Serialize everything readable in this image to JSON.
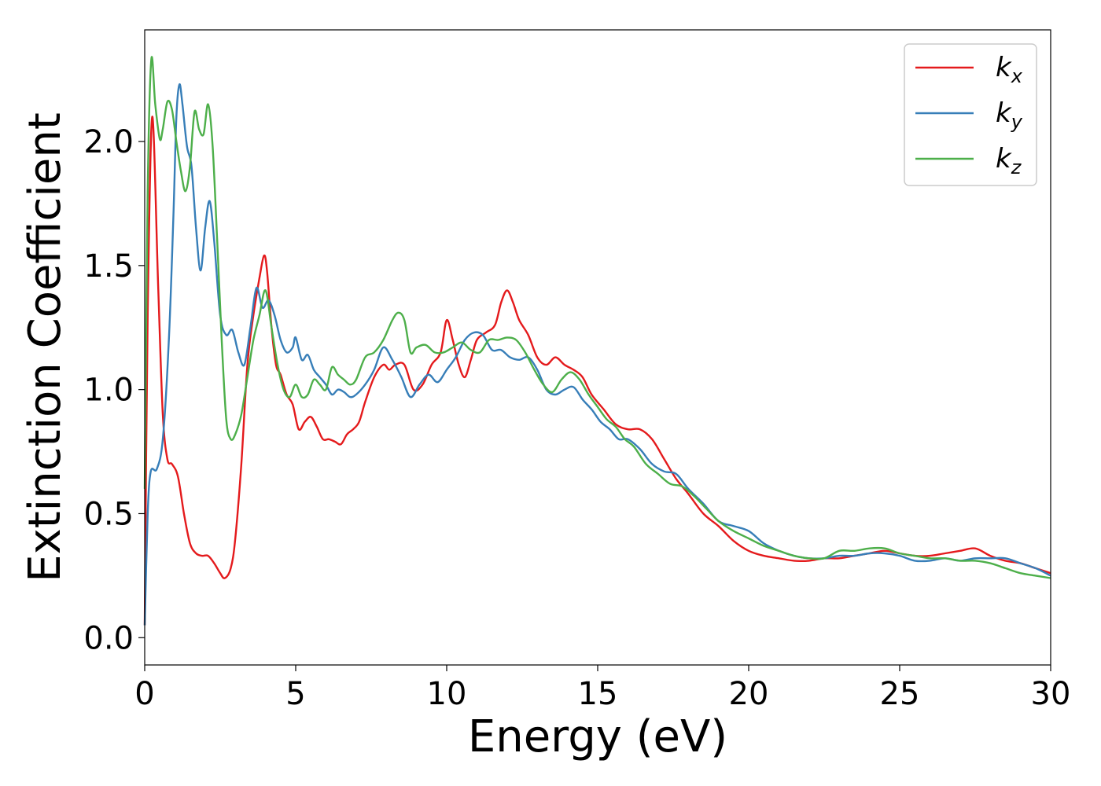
{
  "chart_data": {
    "type": "line",
    "title": "",
    "xlabel": "Energy (eV)",
    "ylabel": "Extinction Coefficient",
    "xlim": [
      0,
      30
    ],
    "ylim": [
      -0.11,
      2.45
    ],
    "xticks": [
      0,
      5,
      10,
      15,
      20,
      25,
      30
    ],
    "xtick_labels": [
      "0",
      "5",
      "10",
      "15",
      "20",
      "25",
      "30"
    ],
    "yticks": [
      0.0,
      0.5,
      1.0,
      1.5,
      2.0
    ],
    "ytick_labels": [
      "0.0",
      "0.5",
      "1.0",
      "1.5",
      "2.0"
    ],
    "grid": false,
    "legend": "top-right",
    "series": [
      {
        "name": "k",
        "subscript": "x",
        "color": "#e41a1c",
        "x": [
          0,
          0.1,
          0.25,
          0.45,
          0.6,
          0.75,
          0.9,
          1.1,
          1.3,
          1.5,
          1.7,
          1.9,
          2.1,
          2.3,
          2.5,
          2.65,
          2.85,
          3.0,
          3.2,
          3.4,
          3.6,
          3.8,
          3.95,
          4.05,
          4.2,
          4.35,
          4.5,
          4.7,
          4.9,
          5.1,
          5.3,
          5.5,
          5.7,
          5.9,
          6.1,
          6.3,
          6.5,
          6.7,
          6.9,
          7.1,
          7.3,
          7.6,
          7.9,
          8.1,
          8.3,
          8.6,
          8.9,
          9.2,
          9.5,
          9.8,
          10.0,
          10.2,
          10.4,
          10.6,
          10.8,
          11.0,
          11.3,
          11.6,
          11.8,
          12.0,
          12.2,
          12.4,
          12.7,
          13.0,
          13.3,
          13.6,
          13.9,
          14.2,
          14.5,
          14.8,
          15.2,
          15.6,
          16.0,
          16.4,
          16.8,
          17.2,
          17.6,
          18.0,
          18.5,
          19.0,
          19.5,
          20.0,
          20.5,
          21.0,
          21.5,
          22.0,
          22.5,
          23.0,
          23.5,
          24.0,
          24.5,
          25.0,
          25.5,
          26.0,
          26.5,
          27.0,
          27.5,
          28.0,
          28.5,
          29.0,
          29.5,
          30.0
        ],
        "y": [
          0.05,
          1.3,
          2.1,
          1.4,
          0.9,
          0.72,
          0.7,
          0.65,
          0.5,
          0.38,
          0.34,
          0.33,
          0.33,
          0.3,
          0.26,
          0.24,
          0.28,
          0.4,
          0.7,
          1.1,
          1.3,
          1.45,
          1.54,
          1.48,
          1.25,
          1.1,
          1.06,
          0.98,
          0.94,
          0.84,
          0.87,
          0.89,
          0.85,
          0.8,
          0.8,
          0.79,
          0.78,
          0.82,
          0.84,
          0.87,
          0.95,
          1.05,
          1.1,
          1.08,
          1.1,
          1.1,
          1.0,
          1.02,
          1.1,
          1.15,
          1.28,
          1.2,
          1.1,
          1.05,
          1.12,
          1.2,
          1.23,
          1.26,
          1.35,
          1.4,
          1.35,
          1.28,
          1.22,
          1.13,
          1.1,
          1.13,
          1.1,
          1.08,
          1.05,
          0.98,
          0.92,
          0.86,
          0.84,
          0.84,
          0.8,
          0.72,
          0.64,
          0.58,
          0.5,
          0.45,
          0.39,
          0.35,
          0.33,
          0.32,
          0.31,
          0.31,
          0.32,
          0.32,
          0.33,
          0.34,
          0.35,
          0.34,
          0.33,
          0.33,
          0.34,
          0.35,
          0.36,
          0.33,
          0.31,
          0.3,
          0.28,
          0.26
        ]
      },
      {
        "name": "k",
        "subscript": "y",
        "color": "#377eb8",
        "x": [
          0,
          0.1,
          0.2,
          0.4,
          0.6,
          0.8,
          0.95,
          1.05,
          1.15,
          1.25,
          1.4,
          1.55,
          1.7,
          1.85,
          2.0,
          2.15,
          2.3,
          2.5,
          2.7,
          2.9,
          3.1,
          3.3,
          3.5,
          3.7,
          3.9,
          4.1,
          4.3,
          4.5,
          4.7,
          4.9,
          5.0,
          5.2,
          5.4,
          5.6,
          5.8,
          6.0,
          6.2,
          6.4,
          6.6,
          6.8,
          7.0,
          7.3,
          7.6,
          7.9,
          8.2,
          8.5,
          8.8,
          9.1,
          9.4,
          9.7,
          10.0,
          10.3,
          10.6,
          10.9,
          11.2,
          11.5,
          11.8,
          12.1,
          12.4,
          12.7,
          13.0,
          13.3,
          13.6,
          13.9,
          14.2,
          14.5,
          14.8,
          15.1,
          15.4,
          15.7,
          16.0,
          16.4,
          16.8,
          17.2,
          17.6,
          18.0,
          18.5,
          19.0,
          19.5,
          20.0,
          20.5,
          21.0,
          21.5,
          22.0,
          22.5,
          23.0,
          23.5,
          24.0,
          24.5,
          25.0,
          25.5,
          26.0,
          26.5,
          27.0,
          27.5,
          28.0,
          28.5,
          29.0,
          29.5,
          30.0
        ],
        "y": [
          0.05,
          0.5,
          0.67,
          0.68,
          0.8,
          1.2,
          1.7,
          2.1,
          2.23,
          2.15,
          1.98,
          1.9,
          1.65,
          1.48,
          1.65,
          1.76,
          1.6,
          1.3,
          1.22,
          1.24,
          1.15,
          1.1,
          1.25,
          1.41,
          1.33,
          1.36,
          1.3,
          1.2,
          1.15,
          1.17,
          1.21,
          1.12,
          1.14,
          1.08,
          1.05,
          1.02,
          0.98,
          1.0,
          0.99,
          0.97,
          0.98,
          1.02,
          1.08,
          1.17,
          1.12,
          1.05,
          0.97,
          1.02,
          1.06,
          1.03,
          1.08,
          1.13,
          1.2,
          1.23,
          1.22,
          1.16,
          1.16,
          1.13,
          1.12,
          1.13,
          1.08,
          1.0,
          0.98,
          1.0,
          1.01,
          0.96,
          0.92,
          0.87,
          0.84,
          0.8,
          0.8,
          0.76,
          0.7,
          0.67,
          0.66,
          0.6,
          0.54,
          0.47,
          0.45,
          0.43,
          0.38,
          0.35,
          0.33,
          0.32,
          0.32,
          0.33,
          0.33,
          0.34,
          0.34,
          0.33,
          0.31,
          0.31,
          0.32,
          0.31,
          0.32,
          0.32,
          0.32,
          0.3,
          0.28,
          0.25
        ]
      },
      {
        "name": "k",
        "subscript": "z",
        "color": "#4daf4a",
        "x": [
          0,
          0.1,
          0.22,
          0.35,
          0.5,
          0.6,
          0.75,
          0.9,
          1.05,
          1.2,
          1.35,
          1.5,
          1.65,
          1.8,
          1.95,
          2.1,
          2.25,
          2.4,
          2.55,
          2.7,
          2.85,
          3.0,
          3.2,
          3.4,
          3.6,
          3.8,
          4.0,
          4.2,
          4.4,
          4.6,
          4.8,
          5.0,
          5.2,
          5.4,
          5.6,
          5.8,
          6.0,
          6.2,
          6.4,
          6.6,
          6.8,
          7.0,
          7.3,
          7.6,
          7.9,
          8.2,
          8.4,
          8.6,
          8.8,
          9.0,
          9.3,
          9.6,
          9.9,
          10.2,
          10.5,
          10.8,
          11.1,
          11.4,
          11.7,
          12.0,
          12.3,
          12.6,
          12.9,
          13.2,
          13.5,
          13.8,
          14.1,
          14.4,
          14.7,
          15.0,
          15.3,
          15.6,
          15.9,
          16.2,
          16.6,
          17.0,
          17.4,
          17.8,
          18.2,
          18.6,
          19.0,
          19.5,
          20.0,
          20.5,
          21.0,
          21.5,
          22.0,
          22.5,
          23.0,
          23.5,
          24.0,
          24.5,
          25.0,
          25.5,
          26.0,
          26.5,
          27.0,
          27.5,
          28.0,
          28.5,
          29.0,
          29.5,
          30.0
        ],
        "y": [
          0.6,
          1.8,
          2.33,
          2.15,
          2.01,
          2.05,
          2.16,
          2.13,
          2.0,
          1.88,
          1.8,
          1.9,
          2.12,
          2.05,
          2.03,
          2.15,
          1.98,
          1.6,
          1.2,
          0.88,
          0.8,
          0.82,
          0.9,
          1.05,
          1.2,
          1.3,
          1.4,
          1.25,
          1.1,
          1.0,
          0.97,
          1.02,
          0.97,
          0.98,
          1.04,
          1.02,
          1.0,
          1.09,
          1.06,
          1.04,
          1.02,
          1.04,
          1.13,
          1.15,
          1.2,
          1.28,
          1.31,
          1.28,
          1.15,
          1.17,
          1.18,
          1.15,
          1.15,
          1.17,
          1.19,
          1.16,
          1.15,
          1.2,
          1.2,
          1.21,
          1.2,
          1.15,
          1.08,
          1.02,
          0.99,
          1.04,
          1.07,
          1.04,
          0.98,
          0.93,
          0.88,
          0.85,
          0.8,
          0.77,
          0.7,
          0.66,
          0.62,
          0.61,
          0.57,
          0.52,
          0.47,
          0.43,
          0.4,
          0.37,
          0.35,
          0.33,
          0.32,
          0.32,
          0.35,
          0.35,
          0.36,
          0.36,
          0.34,
          0.33,
          0.32,
          0.32,
          0.31,
          0.31,
          0.3,
          0.28,
          0.26,
          0.25,
          0.24
        ]
      }
    ]
  }
}
